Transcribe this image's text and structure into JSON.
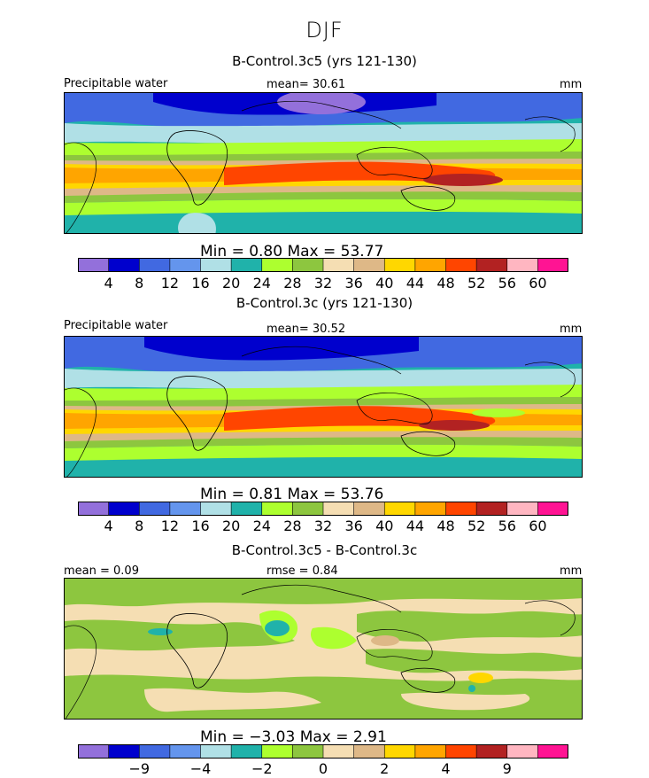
{
  "figure": {
    "season": "DJF"
  },
  "panels": [
    {
      "title": "B-Control.3c5 (yrs 121-130)",
      "left_label": "Precipitable water",
      "center_label": "mean=  30.61",
      "units": "mm",
      "minmax": "Min =    0.80  Max =   53.77",
      "colorbar": {
        "colors": [
          "#9370DB",
          "#0000CD",
          "#4169E1",
          "#6495ED",
          "#B0E0E6",
          "#20B2AA",
          "#ADFF2F",
          "#8DC63F",
          "#F5DEB3",
          "#DEB887",
          "#FFD700",
          "#FFA500",
          "#FF4500",
          "#B22222",
          "#FFB6C1",
          "#FF1493"
        ],
        "labels": [
          "4",
          "8",
          "12",
          "16",
          "20",
          "24",
          "28",
          "32",
          "36",
          "40",
          "44",
          "48",
          "52",
          "56",
          "60"
        ]
      }
    },
    {
      "title": "B-Control.3c (yrs 121-130)",
      "left_label": "Precipitable water",
      "center_label": "mean=  30.52",
      "units": "mm",
      "minmax": "Min =    0.81  Max =   53.76",
      "colorbar": {
        "colors": [
          "#9370DB",
          "#0000CD",
          "#4169E1",
          "#6495ED",
          "#B0E0E6",
          "#20B2AA",
          "#ADFF2F",
          "#8DC63F",
          "#F5DEB3",
          "#DEB887",
          "#FFD700",
          "#FFA500",
          "#FF4500",
          "#B22222",
          "#FFB6C1",
          "#FF1493"
        ],
        "labels": [
          "4",
          "8",
          "12",
          "16",
          "20",
          "24",
          "28",
          "32",
          "36",
          "40",
          "44",
          "48",
          "52",
          "56",
          "60"
        ]
      }
    },
    {
      "title": "B-Control.3c5 - B-Control.3c",
      "left_label": "mean =    0.09",
      "center_label": "rmse =    0.84",
      "units": "mm",
      "minmax": "Min =  −3.03  Max =    2.91",
      "colorbar": {
        "colors": [
          "#9370DB",
          "#0000CD",
          "#4169E1",
          "#6495ED",
          "#B0E0E6",
          "#20B2AA",
          "#ADFF2F",
          "#8DC63F",
          "#F5DEB3",
          "#DEB887",
          "#FFD700",
          "#FFA500",
          "#FF4500",
          "#B22222",
          "#FFB6C1",
          "#FF1493"
        ],
        "labels": [
          "−9",
          "−4",
          "−2",
          "0",
          "2",
          "4",
          "9"
        ],
        "label_slots": [
          2,
          4,
          6,
          8,
          10,
          12,
          14
        ]
      }
    }
  ],
  "chart_data": [
    {
      "type": "heatmap",
      "title": "B-Control.3c5 (yrs 121-130)",
      "field": "Precipitable water",
      "units": "mm",
      "mean": 30.61,
      "min": 0.8,
      "max": 53.77,
      "levels": [
        4,
        8,
        12,
        16,
        20,
        24,
        28,
        32,
        36,
        40,
        44,
        48,
        52,
        56,
        60
      ]
    },
    {
      "type": "heatmap",
      "title": "B-Control.3c (yrs 121-130)",
      "field": "Precipitable water",
      "units": "mm",
      "mean": 30.52,
      "min": 0.81,
      "max": 53.76,
      "levels": [
        4,
        8,
        12,
        16,
        20,
        24,
        28,
        32,
        36,
        40,
        44,
        48,
        52,
        56,
        60
      ]
    },
    {
      "type": "heatmap",
      "title": "B-Control.3c5 - B-Control.3c",
      "units": "mm",
      "mean": 0.09,
      "rmse": 0.84,
      "min": -3.03,
      "max": 2.91,
      "labeled_levels": [
        -9,
        -4,
        -2,
        0,
        2,
        4,
        9
      ]
    }
  ]
}
